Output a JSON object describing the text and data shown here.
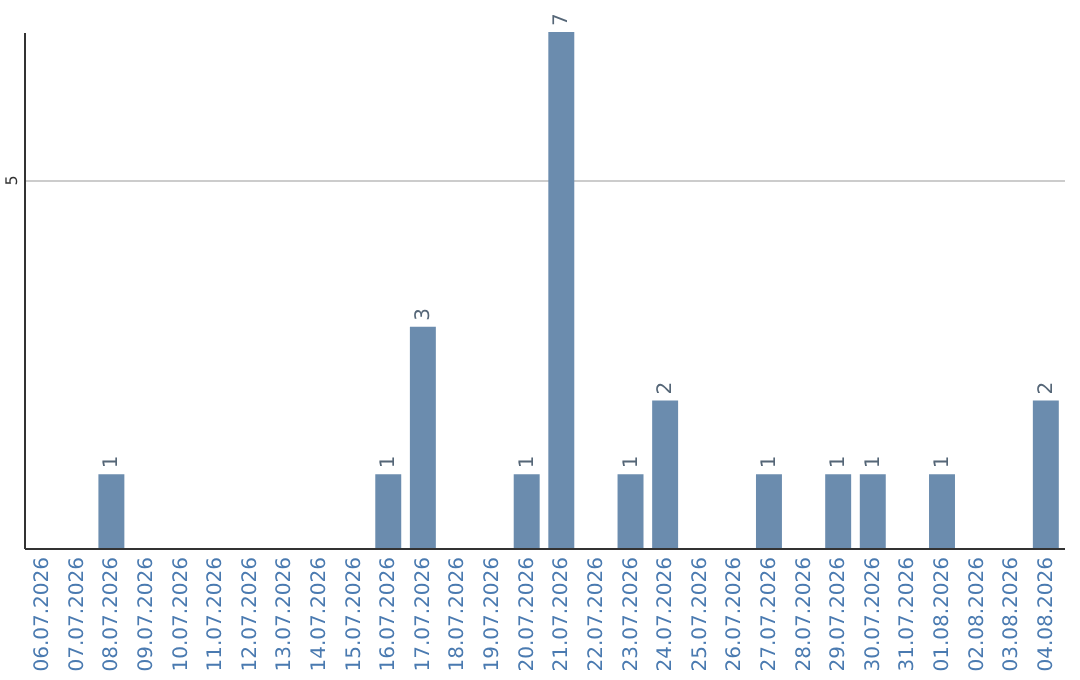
{
  "chart_data": {
    "type": "bar",
    "categories": [
      "06.07.2026",
      "07.07.2026",
      "08.07.2026",
      "09.07.2026",
      "10.07.2026",
      "11.07.2026",
      "12.07.2026",
      "13.07.2026",
      "14.07.2026",
      "15.07.2026",
      "16.07.2026",
      "17.07.2026",
      "18.07.2026",
      "19.07.2026",
      "20.07.2026",
      "21.07.2026",
      "22.07.2026",
      "23.07.2026",
      "24.07.2026",
      "25.07.2026",
      "26.07.2026",
      "27.07.2026",
      "28.07.2026",
      "29.07.2026",
      "30.07.2026",
      "31.07.2026",
      "01.08.2026",
      "02.08.2026",
      "03.08.2026",
      "04.08.2026"
    ],
    "values": [
      0,
      0,
      1,
      0,
      0,
      0,
      0,
      0,
      0,
      0,
      1,
      3,
      0,
      0,
      1,
      7,
      0,
      1,
      2,
      0,
      0,
      1,
      0,
      1,
      1,
      0,
      1,
      0,
      0,
      2
    ],
    "value_labels": [
      null,
      null,
      "1",
      null,
      null,
      null,
      null,
      null,
      null,
      null,
      "1",
      "3",
      null,
      null,
      "1",
      "7",
      null,
      "1",
      "2",
      null,
      null,
      "1",
      null,
      "1",
      "1",
      null,
      "1",
      null,
      null,
      "2"
    ],
    "color": "#6b8cae",
    "ylim": [
      0,
      7
    ],
    "yticks": [
      5
    ],
    "grid": "y"
  }
}
